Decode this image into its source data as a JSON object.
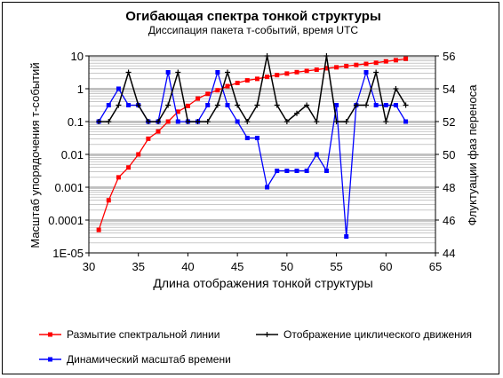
{
  "chart_data": {
    "type": "line",
    "title": "Огибающая спектра тонкой структуры",
    "subtitle": "Диссипация пакета т-событий, время UTC",
    "xlabel": "Длина отображения тонкой структуры",
    "ylabel_left": "Масштаб упорядочения т-событий",
    "ylabel_right": "Флуктуации фаз переноса",
    "xlim": [
      30,
      65
    ],
    "x_ticks": [
      "30",
      "35",
      "40",
      "45",
      "50",
      "55",
      "60",
      "65"
    ],
    "y_left_scale": "log",
    "y_left_lim": [
      1e-05,
      10
    ],
    "y_left_ticks": [
      "1E-05",
      "0.0001",
      "0.001",
      "0.01",
      "0.1",
      "1",
      "10"
    ],
    "y_right_lim": [
      44,
      56
    ],
    "y_right_ticks": [
      "44",
      "46",
      "48",
      "50",
      "52",
      "54",
      "56"
    ],
    "grid": true,
    "legend_position": "bottom",
    "series": [
      {
        "name": "Размытие спектральной линии",
        "axis": "left",
        "color": "#ff0000",
        "marker": "square",
        "x": [
          31,
          32,
          33,
          34,
          35,
          36,
          37,
          38,
          39,
          40,
          41,
          42,
          43,
          44,
          45,
          46,
          47,
          48,
          49,
          50,
          51,
          52,
          53,
          54,
          55,
          56,
          57,
          58,
          59,
          60,
          61,
          62
        ],
        "values": [
          5e-05,
          0.0004,
          0.002,
          0.004,
          0.01,
          0.03,
          0.05,
          0.1,
          0.2,
          0.3,
          0.5,
          0.7,
          0.9,
          1.2,
          1.5,
          1.8,
          2.0,
          2.3,
          2.6,
          2.9,
          3.2,
          3.5,
          3.8,
          4.2,
          4.5,
          4.9,
          5.3,
          5.7,
          6.2,
          6.8,
          7.4,
          8.2
        ]
      },
      {
        "name": "Отображение циклического движения",
        "axis": "right",
        "color": "#000000",
        "marker": "plus",
        "x": [
          31,
          32,
          33,
          34,
          35,
          36,
          37,
          38,
          39,
          40,
          41,
          42,
          43,
          44,
          45,
          46,
          47,
          48,
          49,
          50,
          51,
          52,
          53,
          54,
          55,
          56,
          57,
          58,
          59,
          60,
          61,
          62
        ],
        "values": [
          52,
          52,
          53,
          55,
          53,
          52,
          52,
          53,
          55,
          52,
          52,
          52,
          53,
          55,
          53,
          52,
          53,
          56,
          53,
          52,
          52.5,
          53,
          52,
          56,
          52,
          52,
          53,
          53,
          55,
          52,
          54,
          53
        ]
      },
      {
        "name": "Динамический масштаб времени",
        "axis": "right",
        "color": "#0000ff",
        "marker": "square",
        "x": [
          31,
          32,
          33,
          34,
          35,
          36,
          37,
          38,
          39,
          40,
          41,
          42,
          43,
          44,
          45,
          46,
          47,
          48,
          49,
          50,
          51,
          52,
          53,
          54,
          55,
          56,
          57,
          58,
          59,
          60,
          61,
          62
        ],
        "values": [
          52,
          53,
          54,
          53,
          53,
          52,
          52,
          55,
          52,
          52,
          52,
          53,
          55,
          53,
          52,
          51,
          51,
          48,
          49,
          49,
          49,
          49,
          50,
          49,
          53,
          45,
          53,
          55,
          53,
          53,
          53,
          52
        ]
      }
    ]
  }
}
